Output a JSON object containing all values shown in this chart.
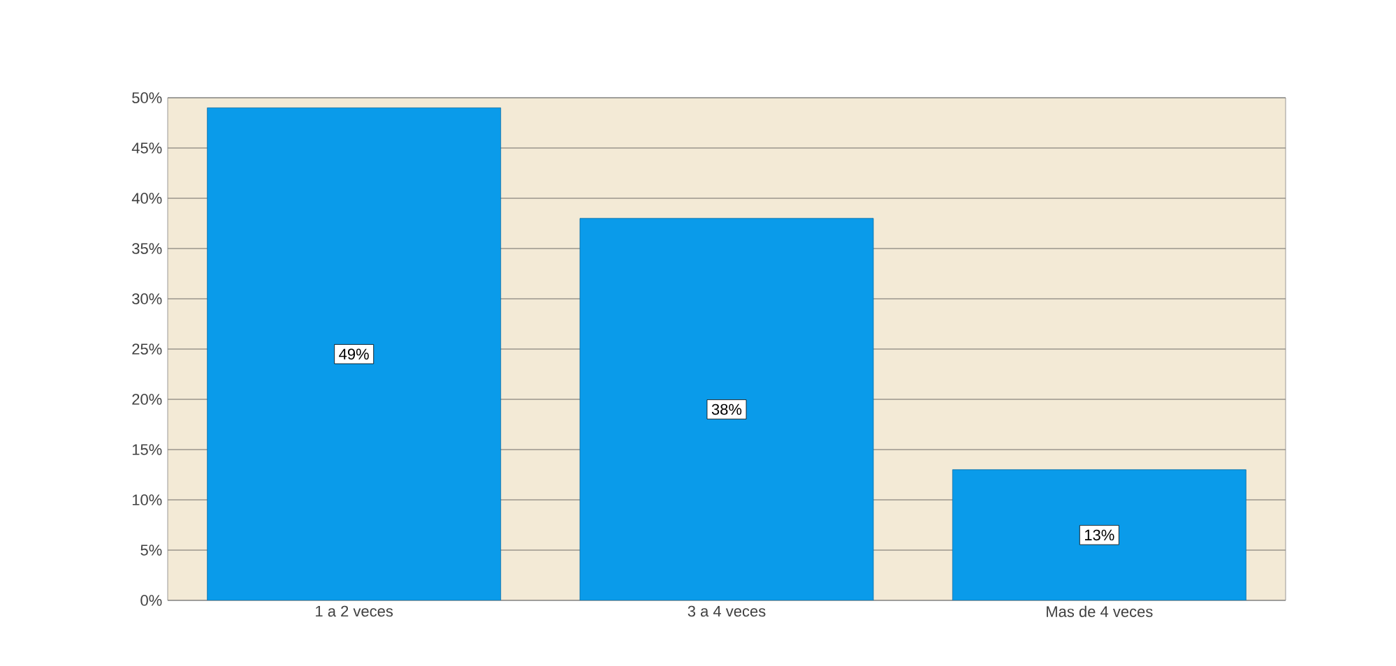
{
  "chart_data": {
    "type": "bar",
    "categories": [
      "1 a 2 veces",
      "3 a 4 veces",
      "Mas de 4 veces"
    ],
    "values": [
      49,
      38,
      13
    ],
    "color": "#0a9bea",
    "value_labels": [
      "49%",
      "38%",
      "13%"
    ],
    "ylim": [
      0,
      50
    ],
    "yticks": [
      {
        "value": 0,
        "label": "0%"
      },
      {
        "value": 5,
        "label": "5%"
      },
      {
        "value": 10,
        "label": "10%"
      },
      {
        "value": 15,
        "label": "15%"
      },
      {
        "value": 20,
        "label": "20%"
      },
      {
        "value": 25,
        "label": "25%"
      },
      {
        "value": 30,
        "label": "30%"
      },
      {
        "value": 35,
        "label": "35%"
      },
      {
        "value": 40,
        "label": "40%"
      },
      {
        "value": 45,
        "label": "45%"
      },
      {
        "value": 50,
        "label": "50%"
      }
    ],
    "grid": "y"
  }
}
